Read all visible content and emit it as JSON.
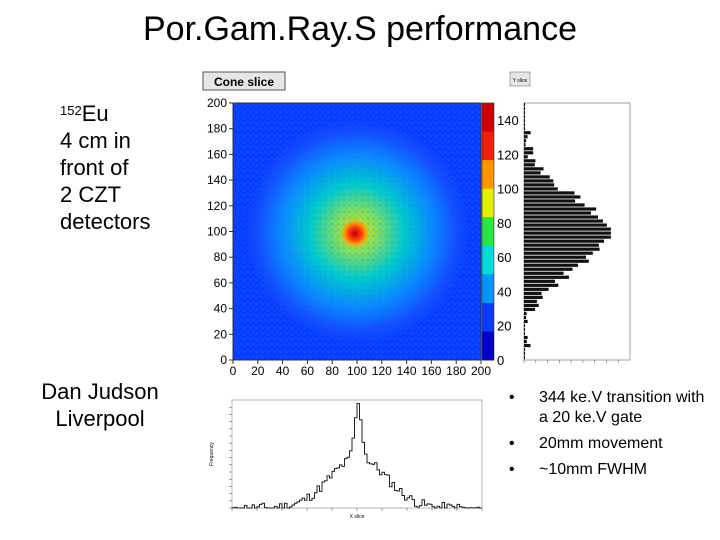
{
  "slide": {
    "title": "Por.Gam.Ray.S performance",
    "source_note": {
      "isotope_mass": "152",
      "isotope_symbol": "Eu",
      "lines": [
        "4 cm in",
        "front of",
        "2 CZT",
        "detectors"
      ]
    },
    "author": {
      "name": "Dan Judson",
      "affiliation": "Liverpool"
    },
    "bullets": [
      {
        "marker": "•",
        "text": "344 ke.V transition with a 20 ke.V gate"
      },
      {
        "marker": "•",
        "text": "20mm movement"
      },
      {
        "marker": "•",
        "text": "~10mm FWHM"
      }
    ]
  },
  "chart_data": [
    {
      "type": "heatmap",
      "title": "Cone slice",
      "x_ticks": [
        "0",
        "20",
        "40",
        "60",
        "80",
        "100",
        "120",
        "140",
        "160",
        "180",
        "200"
      ],
      "y_ticks": [
        "0",
        "20",
        "40",
        "60",
        "80",
        "100",
        "120",
        "140",
        "160",
        "180",
        "200"
      ],
      "xlim": [
        0,
        200
      ],
      "ylim": [
        0,
        200
      ],
      "hotspot": {
        "x": 100,
        "y": 100
      },
      "color_scale_ticks": [
        "0",
        "20",
        "40",
        "60",
        "80",
        "100",
        "120",
        "140"
      ],
      "colors": [
        "#0000c8",
        "#0a3cff",
        "#0096ff",
        "#00dcdc",
        "#28e646",
        "#dcf000",
        "#ff9600",
        "#f01e0a",
        "#cc0000"
      ]
    },
    {
      "type": "bar",
      "title": "Y slice",
      "orientation": "horizontal",
      "peak_y": 100,
      "ylim": [
        0,
        200
      ]
    },
    {
      "type": "line",
      "xlabel": "X slice",
      "ylabel": "Frequency",
      "xlim": [
        0,
        200
      ],
      "ylim": [
        0,
        150
      ],
      "peak_x": 100,
      "peak_y": 145
    }
  ]
}
